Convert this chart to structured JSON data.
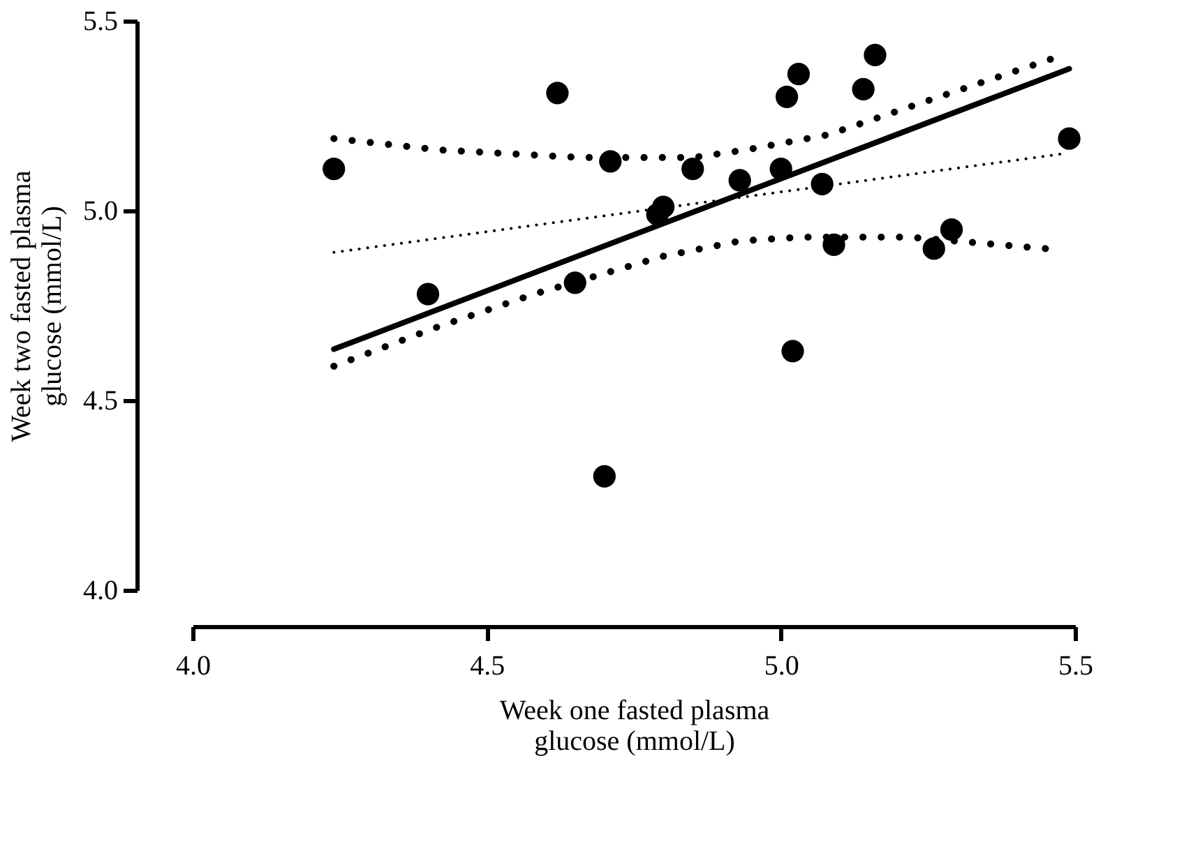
{
  "chart_data": {
    "type": "scatter",
    "xlabel": "Week one fasted plasma\nglucose (mmol/L)",
    "ylabel": "Week two fasted plasma\nglucose (mmol/L)",
    "xlim": [
      4.0,
      5.5
    ],
    "ylim": [
      4.0,
      5.5
    ],
    "xticks": [
      {
        "value": 4,
        "label": "4.0"
      },
      4.5,
      {
        "value": 5,
        "label": "5.0"
      },
      5.5
    ],
    "yticks": [
      {
        "value": 4,
        "label": "4.0"
      },
      4.5,
      {
        "value": 5,
        "label": "5.0"
      },
      5.5
    ],
    "grid": false,
    "legend": false,
    "marker": "circle",
    "series": [
      {
        "type": "line",
        "marker": "none",
        "color": "#000000",
        "line_style": "dotted",
        "x": [
          4.24,
          4.42,
          4.66,
          4.73,
          4.85,
          4.94,
          5.08,
          5.25,
          5.46
        ],
        "values": [
          5.19,
          5.16,
          5.14,
          5.14,
          5.14,
          5.16,
          5.2,
          5.29,
          5.4
        ]
      },
      {
        "type": "line",
        "marker": "none",
        "color": "#000000",
        "line_style": "dotted",
        "x": [
          4.24,
          4.41,
          4.58,
          4.8,
          4.93,
          5.03,
          5.22,
          5.45
        ],
        "values": [
          4.59,
          4.69,
          4.78,
          4.88,
          4.92,
          4.93,
          4.93,
          4.9
        ]
      },
      {
        "type": "line",
        "marker": "none",
        "color": "#000000",
        "line_style": "solid",
        "x": [
          4.24,
          5.49
        ],
        "values": [
          4.635,
          5.374
        ]
      },
      {
        "type": "line",
        "marker": "none",
        "color": "#000000",
        "line_style": "dotted",
        "x": [
          4.24,
          5.48
        ],
        "values": [
          4.89,
          5.15
        ]
      },
      {
        "color": "#000000",
        "x": [
          4.24,
          4.4,
          4.62,
          4.65,
          4.7,
          4.71,
          4.8,
          4.79,
          4.85,
          4.93,
          5.0,
          5.01,
          5.03,
          5.02,
          5.07,
          5.09,
          5.14,
          5.16,
          5.26,
          5.29,
          5.49
        ],
        "values": [
          5.11,
          4.78,
          5.31,
          4.81,
          4.3,
          5.13,
          5.01,
          4.99,
          5.11,
          5.08,
          5.11,
          5.3,
          5.36,
          4.63,
          5.07,
          4.91,
          5.32,
          5.41,
          4.9,
          4.95,
          5.19
        ]
      }
    ]
  }
}
